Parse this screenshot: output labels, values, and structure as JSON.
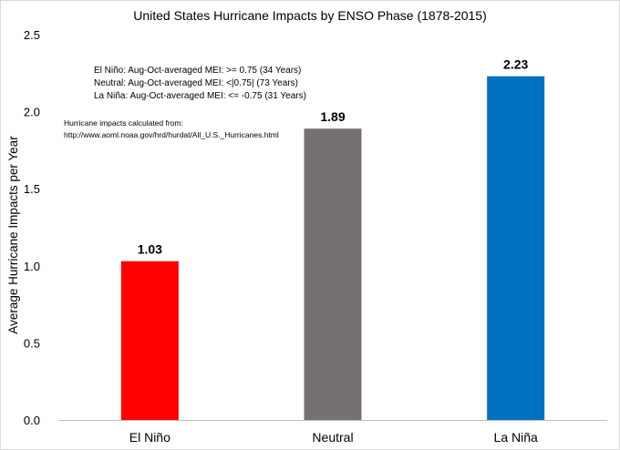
{
  "chart_data": {
    "type": "bar",
    "title": "United States Hurricane Impacts by ENSO Phase (1878-2015)",
    "xlabel": "",
    "ylabel": "Average Hurricane Impacts per Year",
    "ylim": [
      0,
      2.5
    ],
    "yticks": [
      0,
      0.5,
      1.0,
      1.5,
      2.0,
      2.5
    ],
    "ytick_labels": [
      "0.0",
      "0.5",
      "1.0",
      "1.5",
      "2.0",
      "2.5"
    ],
    "categories": [
      "El Niño",
      "Neutral",
      "La Niña"
    ],
    "values": [
      1.03,
      1.89,
      2.23
    ],
    "value_labels": [
      "1.03",
      "1.89",
      "2.23"
    ],
    "bar_colors": [
      "#ff0000",
      "#767171",
      "#0070c0"
    ],
    "grid": false,
    "annotations": {
      "definitions": [
        "El Niño: Aug-Oct-averaged MEI: >= 0.75 (34 Years)",
        "Neutral: Aug-Oct-averaged MEI: <|0.75| (73 Years)",
        "La Niña: Aug-Oct-averaged MEI: <= -0.75 (31 Years)"
      ],
      "source_line1": "Hurricane impacts calculated from:",
      "source_line2": "http://www.aoml.noaa.gov/hrd/hurdat/All_U.S._Hurricanes.html"
    }
  }
}
